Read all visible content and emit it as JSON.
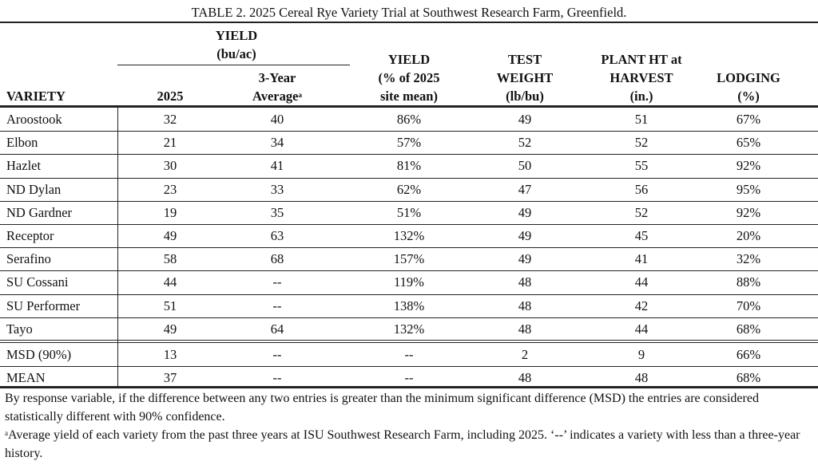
{
  "title": "TABLE 2. 2025 Cereal Rye Variety Trial at Southwest Research Farm, Greenfield.",
  "table": {
    "group_header": [
      "YIELD",
      "(bu/ac)"
    ],
    "columns": [
      {
        "lines": [
          "VARIETY"
        ]
      },
      {
        "lines": [
          "2025"
        ]
      },
      {
        "lines": [
          "3-Year",
          "Average"
        ],
        "marker": "a"
      },
      {
        "lines": [
          "YIELD",
          "(% of 2025",
          "site mean)"
        ]
      },
      {
        "lines": [
          "TEST",
          "WEIGHT",
          "(lb/bu)"
        ]
      },
      {
        "lines": [
          "PLANT HT at",
          "HARVEST",
          "(in.)"
        ]
      },
      {
        "lines": [
          "LODGING",
          "(%)"
        ]
      }
    ],
    "rows": [
      [
        "Aroostook",
        "32",
        "40",
        "86%",
        "49",
        "51",
        "67%"
      ],
      [
        "Elbon",
        "21",
        "34",
        "57%",
        "52",
        "52",
        "65%"
      ],
      [
        "Hazlet",
        "30",
        "41",
        "81%",
        "50",
        "55",
        "92%"
      ],
      [
        "ND Dylan",
        "23",
        "33",
        "62%",
        "47",
        "56",
        "95%"
      ],
      [
        "ND Gardner",
        "19",
        "35",
        "51%",
        "49",
        "52",
        "92%"
      ],
      [
        "Receptor",
        "49",
        "63",
        "132%",
        "49",
        "45",
        "20%"
      ],
      [
        "Serafino",
        "58",
        "68",
        "157%",
        "49",
        "41",
        "32%"
      ],
      [
        "SU Cossani",
        "44",
        "--",
        "119%",
        "48",
        "44",
        "88%"
      ],
      [
        "SU Performer",
        "51",
        "--",
        "138%",
        "48",
        "42",
        "70%"
      ],
      [
        "Tayo",
        "49",
        "64",
        "132%",
        "48",
        "44",
        "68%"
      ]
    ],
    "summary_rows": [
      [
        "MSD (90%)",
        "13",
        "--",
        "--",
        "2",
        "9",
        "66%"
      ],
      [
        "MEAN",
        "37",
        "--",
        "--",
        "48",
        "48",
        "68%"
      ]
    ]
  },
  "footnotes": [
    {
      "text": "By response variable, if the difference between any two entries is greater than the minimum significant difference (MSD) the entries are considered statistically different with 90% confidence."
    },
    {
      "marker": "a",
      "text": "Average yield of each variety from the past three years at ISU Southwest Research Farm, including 2025. ‘--’ indicates a variety with less than a three-year history."
    }
  ]
}
